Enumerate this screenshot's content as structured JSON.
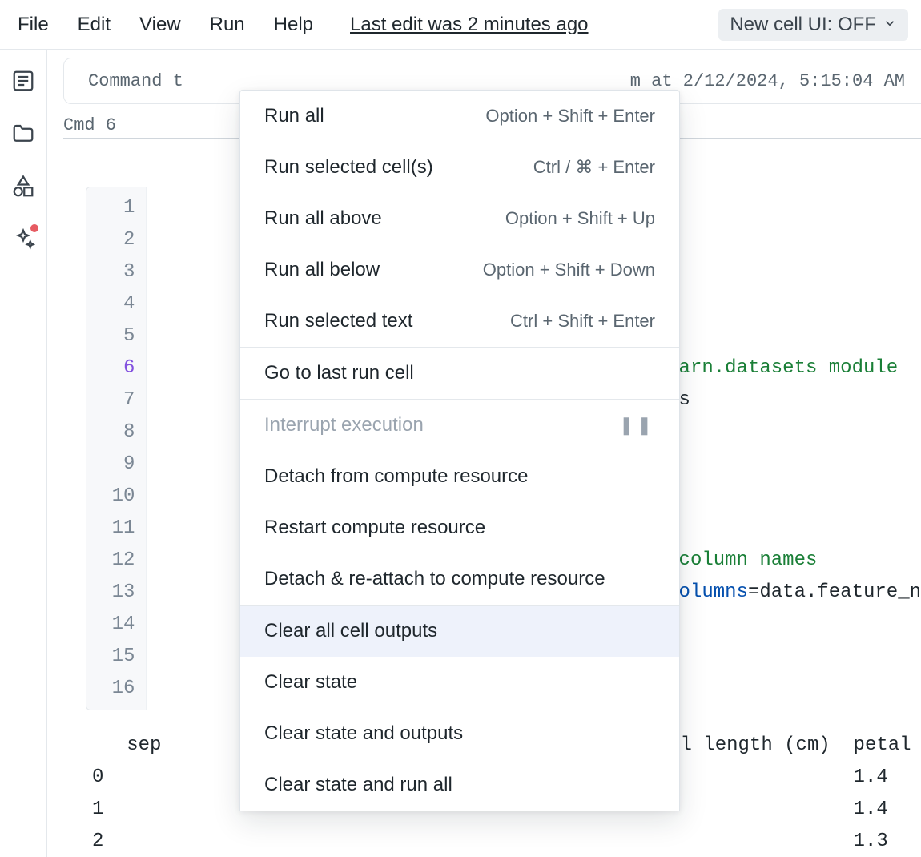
{
  "menubar": {
    "items": [
      {
        "label": "File"
      },
      {
        "label": "Edit"
      },
      {
        "label": "View"
      },
      {
        "label": "Run"
      },
      {
        "label": "Help"
      }
    ],
    "last_edit": "Last edit was 2 minutes ago",
    "pill_label": "New cell UI: OFF"
  },
  "rail_icons": {
    "toc": "toc-icon",
    "folder": "folder-icon",
    "shapes": "shapes-icon",
    "assistant": "assistant-icon"
  },
  "status_bar": {
    "left": "Command t",
    "right": "m at 2/12/2024, 5:15:04 AM"
  },
  "cell_label": "Cmd 6",
  "line_numbers": [
    "1",
    "2",
    "3",
    "4",
    "5",
    "6",
    "7",
    "8",
    "9",
    "10",
    "11",
    "12",
    "13",
    "14",
    "15",
    "16"
  ],
  "active_line_index": 5,
  "code_fragments": {
    "comment1": "learn.datasets module",
    "line7_tail": "ris",
    "comment2": "e column names",
    "kw_columns": "columns",
    "eq": "=",
    "data_feature": "data.feature_n"
  },
  "output": {
    "header_partial": "   sep                                          etal length (cm)  petal",
    "rows": [
      {
        "idx": "0",
        "val": "1.4"
      },
      {
        "idx": "1",
        "val": "1.4"
      },
      {
        "idx": "2",
        "val": "1.3"
      }
    ]
  },
  "dropdown": {
    "groups": [
      [
        {
          "label": "Run all",
          "shortcut": "Option + Shift + Enter"
        },
        {
          "label": "Run selected cell(s)",
          "shortcut": "Ctrl / ⌘ + Enter"
        },
        {
          "label": "Run all above",
          "shortcut": "Option + Shift + Up"
        },
        {
          "label": "Run all below",
          "shortcut": "Option + Shift + Down"
        },
        {
          "label": "Run selected text",
          "shortcut": "Ctrl + Shift + Enter"
        }
      ],
      [
        {
          "label": "Go to last run cell"
        }
      ],
      [
        {
          "label": "Interrupt execution",
          "disabled": true,
          "pause_icon": true
        },
        {
          "label": "Detach from compute resource"
        },
        {
          "label": "Restart compute resource"
        },
        {
          "label": "Detach & re-attach to compute resource"
        }
      ],
      [
        {
          "label": "Clear all cell outputs",
          "hover": true
        },
        {
          "label": "Clear state"
        },
        {
          "label": "Clear state and outputs"
        },
        {
          "label": "Clear state and run all"
        }
      ]
    ]
  },
  "colors": {
    "border": "#e4e8ec",
    "text": "#1f272d",
    "muted": "#5a6670",
    "gutter": "#7b8794",
    "active_line": "#8250df",
    "comment": "#1a7f37",
    "keyword": "#0550ae",
    "hover_bg": "#eef2fb",
    "disabled": "#9aa4af",
    "pill_bg": "#eceff2",
    "dot": "#e65b62"
  }
}
